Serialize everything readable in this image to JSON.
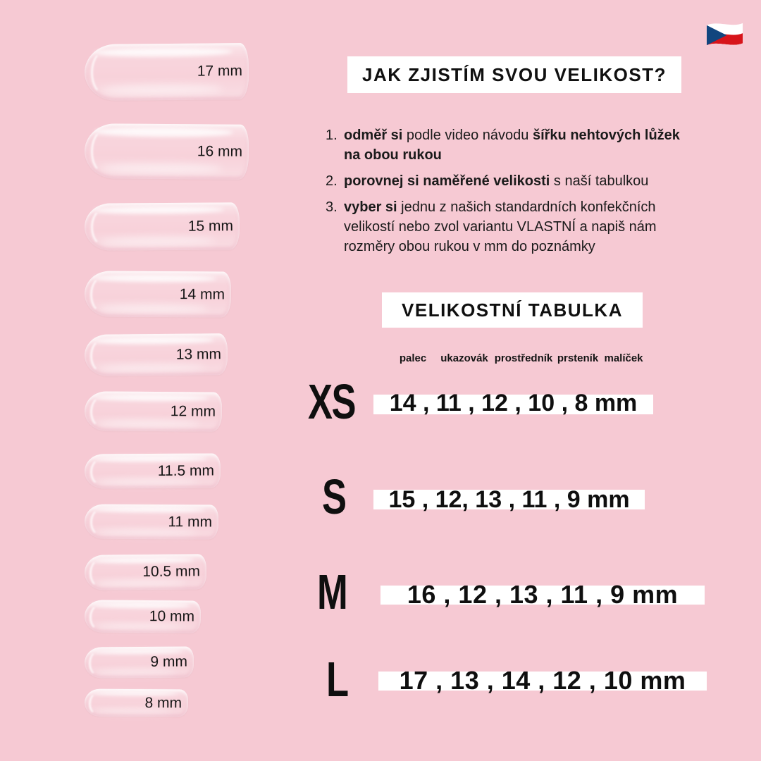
{
  "background_color": "#f6c9d3",
  "flag_icon": "czech-flag",
  "nails": [
    {
      "label": "17 mm"
    },
    {
      "label": "16 mm"
    },
    {
      "label": "15 mm"
    },
    {
      "label": "14 mm"
    },
    {
      "label": "13 mm"
    },
    {
      "label": "12 mm"
    },
    {
      "label": "11.5 mm"
    },
    {
      "label": "11 mm"
    },
    {
      "label": "10.5 mm"
    },
    {
      "label": "10 mm"
    },
    {
      "label": "9 mm"
    },
    {
      "label": "8 mm"
    }
  ],
  "how_to": {
    "title": "JAK ZJISTÍM SVOU VELIKOST?",
    "steps": [
      {
        "number": "1.",
        "lines": [
          [
            {
              "t": "odměř si",
              "b": true
            },
            {
              "t": " podle video návodu ",
              "b": false
            },
            {
              "t": "šířku nehtových lůžek",
              "b": true
            }
          ],
          [
            {
              "t": "na obou rukou",
              "b": true
            }
          ]
        ]
      },
      {
        "number": "2.",
        "lines": [
          [
            {
              "t": "porovnej si naměřené velikosti",
              "b": true
            },
            {
              "t": " s naší tabulkou",
              "b": false
            }
          ]
        ]
      },
      {
        "number": "3.",
        "lines": [
          [
            {
              "t": "vyber si",
              "b": true
            },
            {
              "t": " jednu z našich standardních konfekčních",
              "b": false
            }
          ],
          [
            {
              "t": "velikostí nebo zvol variantu VLASTNÍ a napiš nám",
              "b": false
            }
          ],
          [
            {
              "t": "rozměry obou rukou v mm do poznámky",
              "b": false
            }
          ]
        ]
      }
    ]
  },
  "size_table": {
    "title": "VELIKOSTNÍ TABULKA",
    "columns": [
      "palec",
      "ukazovák",
      "prostředník",
      "prsteník",
      "malíček"
    ],
    "rows": [
      {
        "size": "XS",
        "values_display": "14 , 11 , 12 , 10 , 8 mm",
        "values_mm": [
          14,
          11,
          12,
          10,
          8
        ]
      },
      {
        "size": "S",
        "values_display": "15 , 12, 13 , 11 , 9 mm",
        "values_mm": [
          15,
          12,
          13,
          11,
          9
        ]
      },
      {
        "size": "M",
        "values_display": "16 , 12 , 13 , 11 , 9 mm",
        "values_mm": [
          16,
          12,
          13,
          11,
          9
        ]
      },
      {
        "size": "L",
        "values_display": "17 , 13 , 14 , 12 , 10 mm",
        "values_mm": [
          17,
          13,
          14,
          12,
          10
        ]
      }
    ]
  }
}
